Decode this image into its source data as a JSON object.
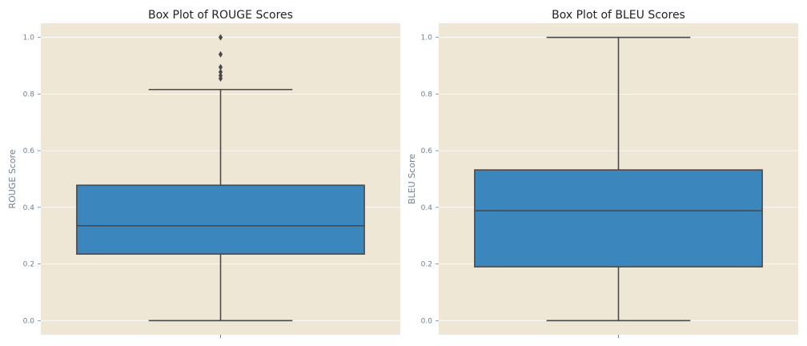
{
  "chart_data": [
    {
      "type": "box",
      "title": "Box Plot of ROUGE Scores",
      "ylabel": "ROUGE Score",
      "xlabel": "",
      "ylim": [
        -0.05,
        1.05
      ],
      "yticks": [
        "0.0",
        "0.2",
        "0.4",
        "0.6",
        "0.8",
        "1.0"
      ],
      "grid": true,
      "box": {
        "whisker_low": 0.0,
        "q1": 0.235,
        "median": 0.335,
        "q3": 0.478,
        "whisker_high": 0.816
      },
      "outliers": [
        0.855,
        0.865,
        0.878,
        0.895,
        0.94,
        1.0
      ]
    },
    {
      "type": "box",
      "title": "Box Plot of BLEU Scores",
      "ylabel": "BLEU Score",
      "xlabel": "",
      "ylim": [
        -0.05,
        1.05
      ],
      "yticks": [
        "0.0",
        "0.2",
        "0.4",
        "0.6",
        "0.8",
        "1.0"
      ],
      "grid": true,
      "box": {
        "whisker_low": 0.0,
        "q1": 0.19,
        "median": 0.388,
        "q3": 0.532,
        "whisker_high": 1.0
      },
      "outliers": []
    }
  ],
  "colors": {
    "axes_background": "#efe7d5",
    "grid": "#ffffff",
    "box_fill": "#3b87bd",
    "box_edge": "#4a4a4a",
    "tick_text": "#6e7f92"
  }
}
